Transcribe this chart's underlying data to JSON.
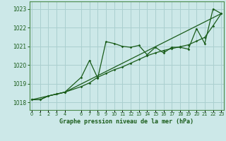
{
  "title": "Graphe pression niveau de la mer (hPa)",
  "background_color": "#cce8e8",
  "grid_color": "#aacfcf",
  "line_color": "#1a5c1a",
  "xlim": [
    -0.3,
    23.3
  ],
  "ylim": [
    1017.6,
    1023.4
  ],
  "yticks": [
    1018,
    1019,
    1020,
    1021,
    1022,
    1023
  ],
  "xticks": [
    0,
    1,
    2,
    3,
    4,
    6,
    7,
    8,
    9,
    10,
    11,
    12,
    13,
    14,
    15,
    16,
    17,
    18,
    19,
    20,
    21,
    22,
    23
  ],
  "series1_x": [
    0,
    1,
    2,
    3,
    4,
    6,
    7,
    8,
    9,
    10,
    11,
    12,
    13,
    14,
    15,
    16,
    17,
    18,
    19,
    20,
    21,
    22,
    23
  ],
  "series1_y": [
    1018.15,
    1018.15,
    1018.35,
    1018.45,
    1018.55,
    1019.35,
    1020.25,
    1019.3,
    1021.25,
    1021.15,
    1021.0,
    1020.95,
    1021.05,
    1020.55,
    1020.95,
    1020.65,
    1020.95,
    1020.95,
    1020.85,
    1021.95,
    1021.15,
    1023.0,
    1022.75
  ],
  "series2_x": [
    0,
    1,
    2,
    3,
    4,
    6,
    7,
    8,
    9,
    10,
    11,
    12,
    13,
    14,
    15,
    16,
    17,
    18,
    19,
    20,
    21,
    22,
    23
  ],
  "series2_y": [
    1018.15,
    1018.15,
    1018.35,
    1018.45,
    1018.55,
    1018.85,
    1019.05,
    1019.35,
    1019.55,
    1019.75,
    1019.9,
    1020.1,
    1020.3,
    1020.5,
    1020.65,
    1020.78,
    1020.88,
    1020.98,
    1021.08,
    1021.28,
    1021.48,
    1022.1,
    1022.75
  ],
  "series3_x": [
    0,
    4,
    23
  ],
  "series3_y": [
    1018.15,
    1018.55,
    1022.75
  ]
}
